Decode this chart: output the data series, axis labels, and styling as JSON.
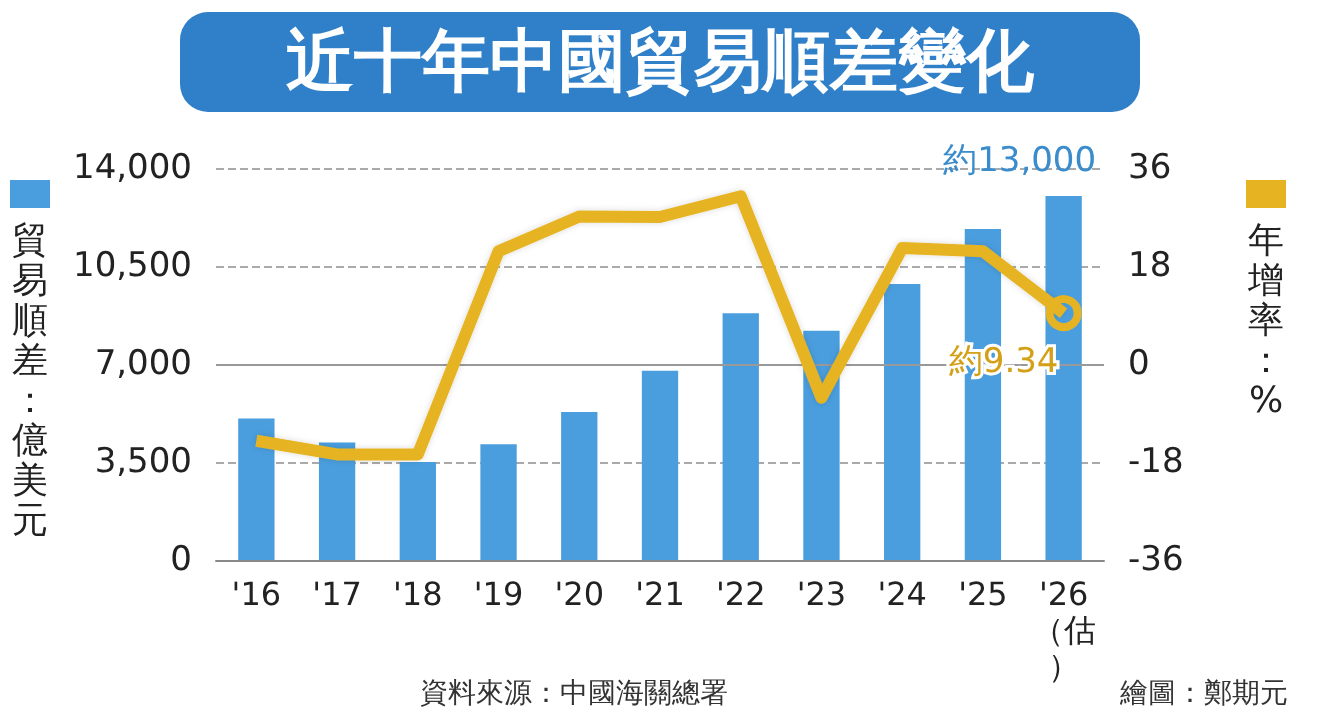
{
  "chart_data": {
    "type": "bar",
    "title": "近十年中國貿易順差變化",
    "categories": [
      "'16",
      "'17",
      "'18",
      "'19",
      "'20",
      "'21",
      "'22",
      "'23",
      "'24",
      "'25",
      "'26（估）"
    ],
    "series": [
      {
        "color": "#4a9ede",
        "values": [
          5050,
          4200,
          3500,
          4130,
          5290,
          6760,
          8810,
          8190,
          9860,
          11820,
          13000
        ],
        "value_labels": [
          null,
          null,
          null,
          null,
          null,
          null,
          null,
          null,
          null,
          null,
          "約13,000"
        ]
      },
      {
        "type": "line",
        "axis": "y2",
        "color": "#e6b422",
        "values": [
          -14.1,
          -16.6,
          -16.6,
          20.7,
          27.1,
          27,
          30.8,
          -6.2,
          21.3,
          20.7,
          9.34
        ],
        "value_labels": [
          null,
          null,
          null,
          null,
          null,
          null,
          null,
          null,
          null,
          null,
          "約9.34"
        ]
      }
    ],
    "ylabel": "貿易順差：億美元",
    "y2label": "年增率：%",
    "ylim": [
      0,
      14000
    ],
    "yticks": [
      0,
      {
        "value": 3500,
        "label": "3,500"
      },
      {
        "value": 7000,
        "label": "7,000"
      },
      {
        "value": 10500,
        "label": "10,500"
      },
      {
        "value": 14000,
        "label": "14,000"
      }
    ],
    "y2lim": [
      -36,
      36
    ],
    "y2ticks": [
      -36,
      -18,
      0,
      18,
      36
    ],
    "ref_lines": [
      {
        "axis": "y2",
        "value": 0,
        "color": "#999999",
        "line_style": "solid"
      }
    ],
    "grid": "y",
    "annotations": [
      "資料來源：中國海關總署",
      "繪圖：鄭期元"
    ]
  }
}
